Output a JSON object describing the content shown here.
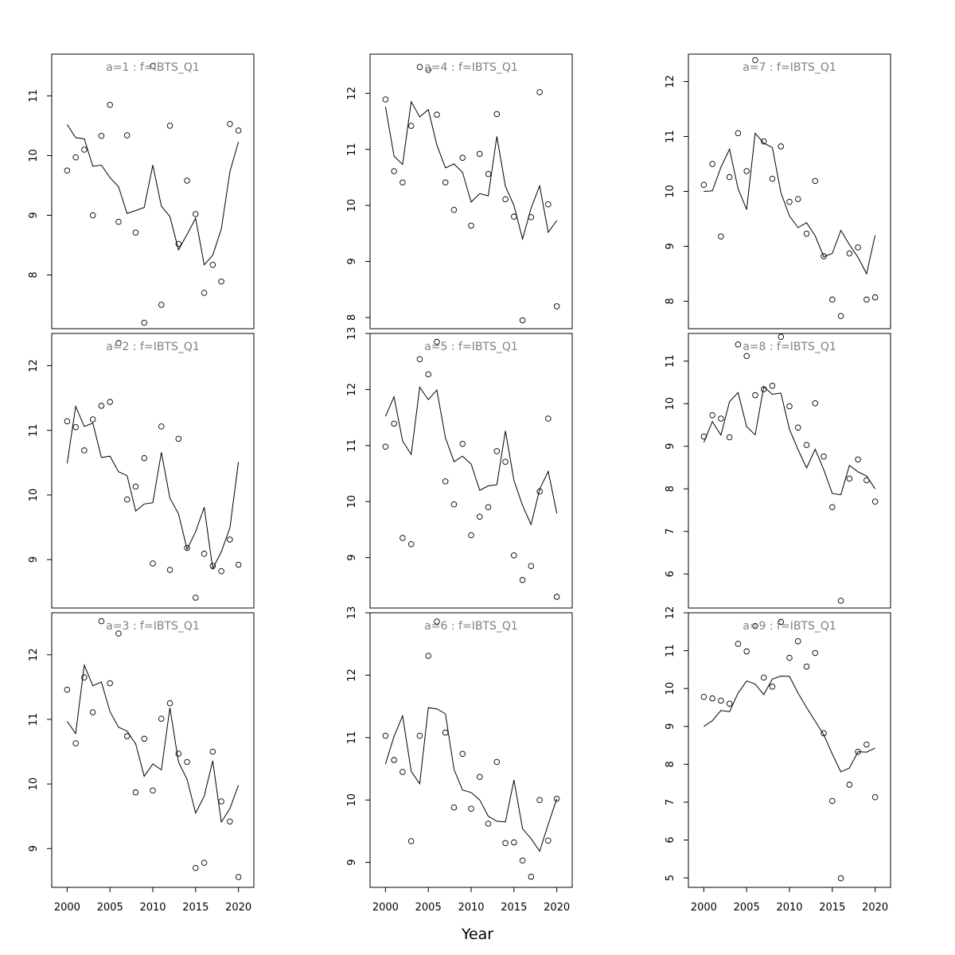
{
  "figure": {
    "xlabel": "Year",
    "colors": {
      "axis": "#000000",
      "title": "#808080",
      "line": "#000000",
      "point": "#000000"
    }
  },
  "chart_data": [
    {
      "type": "scatter",
      "title": "a=1 : f=IBTS_Q1",
      "xlim": [
        1998.2,
        2021.8
      ],
      "ylim": [
        7.1,
        11.7
      ],
      "xticks": [
        2000,
        2005,
        2010,
        2015,
        2020
      ],
      "yticks": [
        8,
        9,
        10,
        11
      ],
      "show_xticks": false,
      "series": [
        {
          "kind": "points",
          "x": [
            2000,
            2001,
            2002,
            2003,
            2004,
            2005,
            2006,
            2007,
            2008,
            2009,
            2010,
            2011,
            2012,
            2013,
            2014,
            2015,
            2016,
            2017,
            2018,
            2019,
            2020
          ],
          "values": [
            9.75,
            9.97,
            10.1,
            9.0,
            10.33,
            10.85,
            8.89,
            10.34,
            8.71,
            7.2,
            11.5,
            7.5,
            10.5,
            8.52,
            9.58,
            9.02,
            7.7,
            8.17,
            7.89,
            10.53,
            10.42
          ]
        },
        {
          "kind": "line",
          "x": [
            2000,
            2001,
            2002,
            2003,
            2004,
            2005,
            2006,
            2007,
            2008,
            2009,
            2010,
            2011,
            2012,
            2013,
            2014,
            2015,
            2016,
            2017,
            2018,
            2019,
            2020
          ],
          "values": [
            10.52,
            10.3,
            10.28,
            9.82,
            9.84,
            9.63,
            9.48,
            9.03,
            9.08,
            9.13,
            9.84,
            9.15,
            8.98,
            8.42,
            8.68,
            8.95,
            8.17,
            8.33,
            8.77,
            9.73,
            10.23
          ]
        }
      ]
    },
    {
      "type": "scatter",
      "title": "a=2 : f=IBTS_Q1",
      "xlim": [
        1998.2,
        2021.8
      ],
      "ylim": [
        8.25,
        12.5
      ],
      "xticks": [
        2000,
        2005,
        2010,
        2015,
        2020
      ],
      "yticks": [
        9,
        10,
        11,
        12
      ],
      "show_xticks": false,
      "series": [
        {
          "kind": "points",
          "x": [
            2000,
            2001,
            2002,
            2003,
            2004,
            2005,
            2006,
            2007,
            2008,
            2009,
            2010,
            2011,
            2012,
            2013,
            2014,
            2015,
            2016,
            2017,
            2018,
            2019,
            2020
          ],
          "values": [
            11.14,
            11.05,
            10.69,
            11.17,
            11.38,
            11.44,
            12.35,
            9.93,
            10.13,
            10.57,
            8.94,
            11.06,
            8.84,
            10.87,
            9.18,
            8.41,
            9.09,
            8.9,
            8.82,
            9.31,
            8.92
          ]
        },
        {
          "kind": "line",
          "x": [
            2000,
            2001,
            2002,
            2003,
            2004,
            2005,
            2006,
            2007,
            2008,
            2009,
            2010,
            2011,
            2012,
            2013,
            2014,
            2015,
            2016,
            2017,
            2018,
            2019,
            2020
          ],
          "values": [
            10.49,
            11.37,
            11.06,
            11.11,
            10.58,
            10.6,
            10.36,
            10.3,
            9.75,
            9.86,
            9.88,
            10.66,
            9.95,
            9.71,
            9.16,
            9.43,
            9.81,
            8.86,
            9.12,
            9.49,
            10.51
          ]
        }
      ]
    },
    {
      "type": "scatter",
      "title": "a=3 : f=IBTS_Q1",
      "xlim": [
        1998.2,
        2021.8
      ],
      "ylim": [
        8.4,
        12.65
      ],
      "xticks": [
        2000,
        2005,
        2010,
        2015,
        2020
      ],
      "yticks": [
        9,
        10,
        11,
        12
      ],
      "show_xticks": true,
      "series": [
        {
          "kind": "points",
          "x": [
            2000,
            2001,
            2002,
            2003,
            2004,
            2005,
            2006,
            2007,
            2008,
            2009,
            2010,
            2011,
            2012,
            2013,
            2014,
            2015,
            2016,
            2017,
            2018,
            2019,
            2020
          ],
          "values": [
            11.46,
            10.63,
            11.65,
            11.11,
            12.52,
            11.56,
            12.33,
            10.74,
            9.87,
            10.7,
            9.9,
            11.01,
            11.25,
            10.47,
            10.34,
            8.7,
            8.78,
            10.5,
            9.73,
            9.42,
            8.56
          ]
        },
        {
          "kind": "line",
          "x": [
            2000,
            2001,
            2002,
            2003,
            2004,
            2005,
            2006,
            2007,
            2008,
            2009,
            2010,
            2011,
            2012,
            2013,
            2014,
            2015,
            2016,
            2017,
            2018,
            2019,
            2020
          ],
          "values": [
            10.97,
            10.78,
            11.84,
            11.52,
            11.58,
            11.12,
            10.88,
            10.82,
            10.62,
            10.12,
            10.31,
            10.22,
            11.18,
            10.34,
            10.07,
            9.55,
            9.81,
            10.36,
            9.41,
            9.62,
            9.98
          ]
        }
      ]
    },
    {
      "type": "scatter",
      "title": "a=4 : f=IBTS_Q1",
      "xlim": [
        1998.2,
        2021.8
      ],
      "ylim": [
        7.8,
        12.7
      ],
      "xticks": [
        2000,
        2005,
        2010,
        2015,
        2020
      ],
      "yticks": [
        8,
        9,
        10,
        11,
        12
      ],
      "show_xticks": false,
      "series": [
        {
          "kind": "points",
          "x": [
            2000,
            2001,
            2002,
            2003,
            2004,
            2005,
            2006,
            2007,
            2008,
            2009,
            2010,
            2011,
            2012,
            2013,
            2014,
            2015,
            2016,
            2017,
            2018,
            2019,
            2020
          ],
          "values": [
            11.89,
            10.61,
            10.41,
            11.42,
            12.47,
            12.42,
            11.62,
            10.41,
            9.92,
            10.85,
            9.64,
            10.92,
            10.56,
            11.63,
            10.11,
            9.8,
            7.95,
            9.79,
            12.02,
            10.02,
            8.2
          ]
        },
        {
          "kind": "line",
          "x": [
            2000,
            2001,
            2002,
            2003,
            2004,
            2005,
            2006,
            2007,
            2008,
            2009,
            2010,
            2011,
            2012,
            2013,
            2014,
            2015,
            2016,
            2017,
            2018,
            2019,
            2020
          ],
          "values": [
            11.76,
            10.88,
            10.73,
            11.85,
            11.58,
            11.71,
            11.08,
            10.67,
            10.74,
            10.59,
            10.06,
            10.21,
            10.17,
            11.23,
            10.34,
            10.0,
            9.4,
            9.95,
            10.35,
            9.52,
            9.73
          ]
        }
      ]
    },
    {
      "type": "scatter",
      "title": "a=5 : f=IBTS_Q1",
      "xlim": [
        1998.2,
        2021.8
      ],
      "ylim": [
        8.1,
        13.0
      ],
      "xticks": [
        2000,
        2005,
        2010,
        2015,
        2020
      ],
      "yticks": [
        9,
        10,
        11,
        12,
        13
      ],
      "show_xticks": false,
      "series": [
        {
          "kind": "points",
          "x": [
            2000,
            2001,
            2002,
            2003,
            2004,
            2005,
            2006,
            2007,
            2008,
            2009,
            2010,
            2011,
            2012,
            2013,
            2014,
            2015,
            2016,
            2017,
            2018,
            2019,
            2020
          ],
          "values": [
            10.98,
            11.39,
            9.35,
            9.24,
            12.54,
            12.27,
            12.85,
            10.36,
            9.95,
            11.03,
            9.4,
            9.73,
            9.9,
            10.9,
            10.71,
            9.04,
            8.6,
            8.85,
            10.18,
            11.48,
            8.3
          ]
        },
        {
          "kind": "line",
          "x": [
            2000,
            2001,
            2002,
            2003,
            2004,
            2005,
            2006,
            2007,
            2008,
            2009,
            2010,
            2011,
            2012,
            2013,
            2014,
            2015,
            2016,
            2017,
            2018,
            2019,
            2020
          ],
          "values": [
            11.52,
            11.87,
            11.08,
            10.84,
            12.04,
            11.82,
            11.99,
            11.14,
            10.71,
            10.81,
            10.67,
            10.2,
            10.28,
            10.3,
            11.26,
            10.38,
            9.93,
            9.59,
            10.22,
            10.54,
            9.79
          ]
        }
      ]
    },
    {
      "type": "scatter",
      "title": "a=6 : f=IBTS_Q1",
      "xlim": [
        1998.2,
        2021.8
      ],
      "ylim": [
        8.6,
        13.0
      ],
      "xticks": [
        2000,
        2005,
        2010,
        2015,
        2020
      ],
      "yticks": [
        9,
        10,
        11,
        12,
        13
      ],
      "show_xticks": true,
      "series": [
        {
          "kind": "points",
          "x": [
            2000,
            2001,
            2002,
            2003,
            2004,
            2005,
            2006,
            2007,
            2008,
            2009,
            2010,
            2011,
            2012,
            2013,
            2014,
            2015,
            2016,
            2017,
            2018,
            2019,
            2020
          ],
          "values": [
            11.03,
            10.64,
            10.45,
            9.34,
            11.03,
            12.31,
            12.86,
            11.08,
            9.88,
            10.74,
            9.86,
            10.37,
            9.62,
            10.61,
            9.31,
            9.32,
            9.03,
            8.77,
            10.0,
            9.35,
            10.02
          ]
        },
        {
          "kind": "line",
          "x": [
            2000,
            2001,
            2002,
            2003,
            2004,
            2005,
            2006,
            2007,
            2008,
            2009,
            2010,
            2011,
            2012,
            2013,
            2014,
            2015,
            2016,
            2017,
            2018,
            2019,
            2020
          ],
          "values": [
            10.58,
            11.02,
            11.35,
            10.46,
            10.26,
            11.48,
            11.46,
            11.38,
            10.49,
            10.16,
            10.12,
            10.0,
            9.74,
            9.66,
            9.65,
            10.32,
            9.54,
            9.38,
            9.18,
            9.61,
            10.02
          ]
        }
      ]
    },
    {
      "type": "scatter",
      "title": "a=7 : f=IBTS_Q1",
      "xlim": [
        1998.2,
        2021.8
      ],
      "ylim": [
        7.5,
        12.5
      ],
      "xticks": [
        2000,
        2005,
        2010,
        2015,
        2020
      ],
      "yticks": [
        8,
        9,
        10,
        11,
        12
      ],
      "show_xticks": false,
      "series": [
        {
          "kind": "points",
          "x": [
            2000,
            2001,
            2002,
            2003,
            2004,
            2005,
            2006,
            2007,
            2008,
            2009,
            2010,
            2011,
            2012,
            2013,
            2014,
            2015,
            2016,
            2017,
            2018,
            2019,
            2020
          ],
          "values": [
            10.12,
            10.5,
            9.18,
            10.26,
            11.06,
            10.37,
            12.39,
            10.91,
            10.23,
            10.82,
            9.81,
            9.86,
            9.23,
            10.19,
            8.82,
            8.03,
            7.73,
            8.87,
            8.98,
            8.03,
            8.07
          ]
        },
        {
          "kind": "line",
          "x": [
            2000,
            2001,
            2002,
            2003,
            2004,
            2005,
            2006,
            2007,
            2008,
            2009,
            2010,
            2011,
            2012,
            2013,
            2014,
            2015,
            2016,
            2017,
            2018,
            2019,
            2020
          ],
          "values": [
            10.0,
            10.01,
            10.44,
            10.77,
            10.05,
            9.67,
            11.06,
            10.88,
            10.8,
            9.98,
            9.55,
            9.34,
            9.43,
            9.19,
            8.81,
            8.87,
            9.29,
            9.03,
            8.8,
            8.5,
            9.2
          ]
        }
      ]
    },
    {
      "type": "scatter",
      "title": "a=8 : f=IBTS_Q1",
      "xlim": [
        1998.2,
        2021.8
      ],
      "ylim": [
        5.2,
        11.65
      ],
      "xticks": [
        2000,
        2005,
        2010,
        2015,
        2020
      ],
      "yticks": [
        6,
        7,
        8,
        9,
        10,
        11
      ],
      "show_xticks": false,
      "series": [
        {
          "kind": "points",
          "x": [
            2000,
            2001,
            2002,
            2003,
            2004,
            2005,
            2006,
            2007,
            2008,
            2009,
            2010,
            2011,
            2012,
            2013,
            2014,
            2015,
            2016,
            2017,
            2018,
            2019,
            2020
          ],
          "values": [
            9.23,
            9.73,
            9.65,
            9.21,
            11.39,
            11.12,
            10.2,
            10.34,
            10.42,
            11.57,
            9.94,
            9.44,
            9.03,
            10.01,
            8.76,
            7.57,
            5.37,
            8.24,
            8.69,
            8.2,
            7.7
          ]
        },
        {
          "kind": "line",
          "x": [
            2000,
            2001,
            2002,
            2003,
            2004,
            2005,
            2006,
            2007,
            2008,
            2009,
            2010,
            2011,
            2012,
            2013,
            2014,
            2015,
            2016,
            2017,
            2018,
            2019,
            2020
          ],
          "values": [
            9.09,
            9.58,
            9.26,
            10.05,
            10.26,
            9.46,
            9.27,
            10.4,
            10.22,
            10.25,
            9.4,
            8.92,
            8.49,
            8.93,
            8.45,
            7.89,
            7.86,
            8.55,
            8.4,
            8.3,
            8.0
          ]
        }
      ]
    },
    {
      "type": "scatter",
      "title": "a=9 : f=IBTS_Q1",
      "xlim": [
        1998.2,
        2021.8
      ],
      "ylim": [
        4.75,
        12.0
      ],
      "xticks": [
        2000,
        2005,
        2010,
        2015,
        2020
      ],
      "yticks": [
        5,
        6,
        7,
        8,
        9,
        10,
        11,
        12
      ],
      "show_xticks": true,
      "series": [
        {
          "kind": "points",
          "x": [
            2000,
            2001,
            2002,
            2003,
            2004,
            2005,
            2006,
            2007,
            2008,
            2009,
            2010,
            2011,
            2012,
            2013,
            2014,
            2015,
            2016,
            2017,
            2018,
            2019,
            2020
          ],
          "values": [
            9.78,
            9.74,
            9.68,
            9.6,
            11.18,
            10.98,
            11.65,
            10.29,
            10.05,
            11.76,
            10.81,
            11.25,
            10.58,
            10.94,
            8.82,
            7.03,
            4.99,
            7.46,
            8.33,
            8.52,
            7.13
          ]
        },
        {
          "kind": "line",
          "x": [
            2000,
            2001,
            2002,
            2003,
            2004,
            2005,
            2006,
            2007,
            2008,
            2009,
            2010,
            2011,
            2012,
            2013,
            2014,
            2015,
            2016,
            2017,
            2018,
            2019,
            2020
          ],
          "values": [
            9.0,
            9.15,
            9.42,
            9.39,
            9.88,
            10.2,
            10.12,
            9.84,
            10.25,
            10.33,
            10.32,
            9.88,
            9.5,
            9.14,
            8.78,
            8.27,
            7.8,
            7.9,
            8.33,
            8.32,
            8.43
          ]
        }
      ]
    }
  ]
}
